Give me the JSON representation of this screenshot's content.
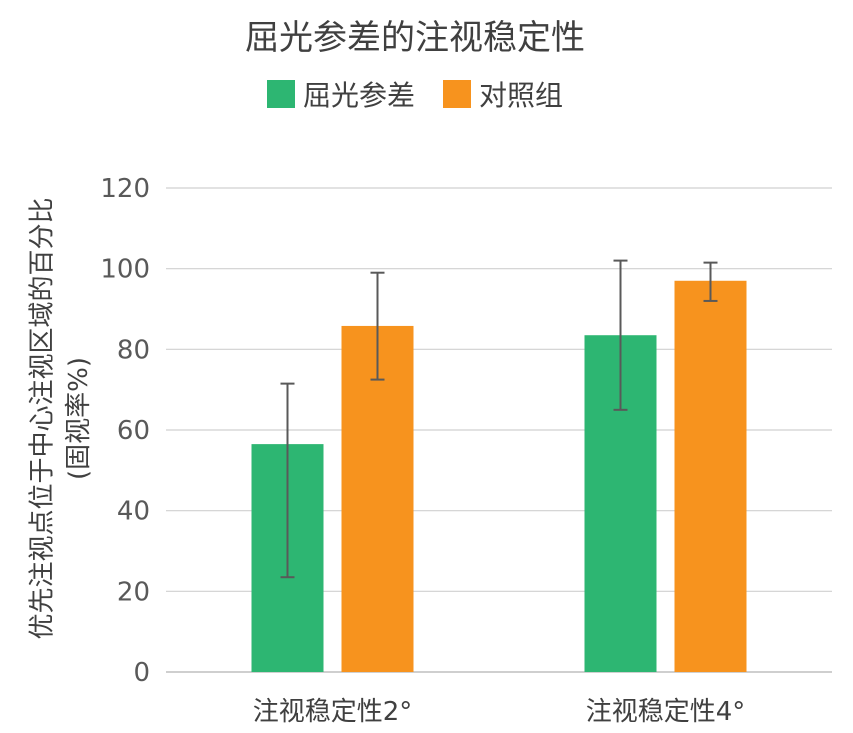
{
  "chart_data": {
    "type": "bar",
    "title": "屈光参差的注视稳定性",
    "ylabel_line1": "优先注视点位于中心注视区域的百分比",
    "ylabel_line2": "(固视率%)",
    "xlabel": "",
    "categories": [
      "注视稳定性2°",
      "注视稳定性4°"
    ],
    "series": [
      {
        "name": "屈光参差",
        "color": "#2db672",
        "values": [
          56.5,
          83.5
        ],
        "error_low": [
          23.5,
          65
        ],
        "error_high": [
          71.5,
          102
        ]
      },
      {
        "name": "对照组",
        "color": "#f7931e",
        "values": [
          85.8,
          97
        ],
        "error_low": [
          72.5,
          92
        ],
        "error_high": [
          99,
          101.5
        ]
      }
    ],
    "ylim": [
      0,
      120
    ],
    "yticks": [
      0,
      20,
      40,
      60,
      80,
      100,
      120
    ],
    "grid": true,
    "legend_position": "top"
  }
}
